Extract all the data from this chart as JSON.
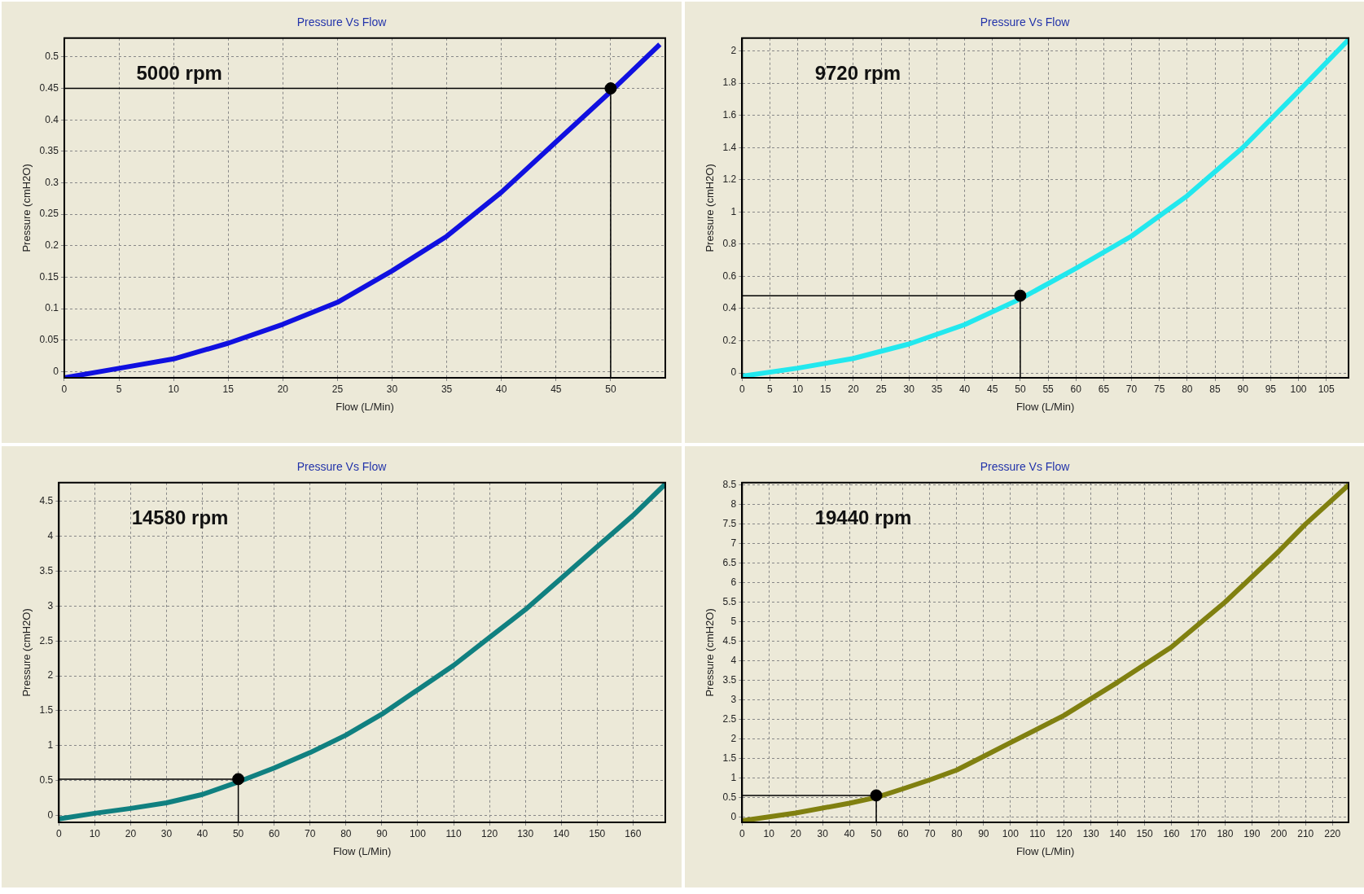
{
  "chart_data": [
    {
      "type": "line",
      "title": "Pressure Vs Flow",
      "xlabel": "Flow (L/Min)",
      "ylabel": "Pressure (cmH2O)",
      "annotations": [
        "5000 rpm"
      ],
      "grid": true,
      "legend": false,
      "xlim": [
        0,
        55
      ],
      "ylim": [
        -0.01,
        0.53
      ],
      "xticks": [
        0,
        5,
        10,
        15,
        20,
        25,
        30,
        35,
        40,
        45,
        50
      ],
      "yticks": [
        0,
        0.05,
        0.1,
        0.15,
        0.2,
        0.25,
        0.3,
        0.35,
        0.4,
        0.45,
        0.5
      ],
      "series": [
        {
          "color": "#1010e0",
          "marker": "none",
          "x": [
            0,
            5,
            10,
            15,
            20,
            25,
            30,
            35,
            40,
            45,
            50,
            54.5
          ],
          "values": [
            -0.01,
            0.005,
            0.02,
            0.045,
            0.075,
            0.11,
            0.16,
            0.215,
            0.285,
            0.365,
            0.445,
            0.52
          ]
        },
        {
          "type": "line",
          "color": "#000000",
          "marker": "none",
          "x": [
            0,
            50,
            50
          ],
          "values": [
            0.45,
            0.45,
            -0.01
          ]
        },
        {
          "type": "scatter",
          "color": "#000000",
          "marker": "circle",
          "x": [
            50
          ],
          "values": [
            0.45
          ]
        }
      ]
    },
    {
      "type": "line",
      "title": "Pressure Vs Flow",
      "xlabel": "Flow (L/Min)",
      "ylabel": "Pressure (cmH2O)",
      "annotations": [
        "9720 rpm"
      ],
      "grid": true,
      "legend": false,
      "xlim": [
        0,
        109
      ],
      "ylim": [
        -0.03,
        2.08
      ],
      "xticks": [
        0,
        5,
        10,
        15,
        20,
        25,
        30,
        35,
        40,
        45,
        50,
        55,
        60,
        65,
        70,
        75,
        80,
        85,
        90,
        95,
        100,
        105
      ],
      "yticks": [
        0,
        0.2,
        0.4,
        0.6,
        0.8,
        1,
        1.2,
        1.4,
        1.6,
        1.8,
        2
      ],
      "series": [
        {
          "color": "#22e8ee",
          "marker": "none",
          "x": [
            0,
            10,
            20,
            30,
            40,
            50,
            60,
            70,
            80,
            90,
            100,
            109
          ],
          "values": [
            -0.02,
            0.03,
            0.09,
            0.18,
            0.3,
            0.46,
            0.65,
            0.85,
            1.1,
            1.4,
            1.75,
            2.07
          ]
        },
        {
          "type": "line",
          "color": "#000000",
          "marker": "none",
          "x": [
            0,
            50,
            50
          ],
          "values": [
            0.48,
            0.48,
            -0.03
          ]
        },
        {
          "type": "scatter",
          "color": "#000000",
          "marker": "circle",
          "x": [
            50
          ],
          "values": [
            0.48
          ]
        }
      ]
    },
    {
      "type": "line",
      "title": "Pressure Vs Flow",
      "xlabel": "Flow (L/Min)",
      "ylabel": "Pressure (cmH2O)",
      "annotations": [
        "14580 rpm"
      ],
      "grid": true,
      "legend": false,
      "xlim": [
        0,
        169
      ],
      "ylim": [
        -0.1,
        4.77
      ],
      "xticks": [
        0,
        10,
        20,
        30,
        40,
        50,
        60,
        70,
        80,
        90,
        100,
        110,
        120,
        130,
        140,
        150,
        160
      ],
      "yticks": [
        0,
        0.5,
        1,
        1.5,
        2,
        2.5,
        3,
        3.5,
        4,
        4.5
      ],
      "series": [
        {
          "color": "#108080",
          "marker": "none",
          "x": [
            0,
            10,
            20,
            30,
            40,
            50,
            60,
            70,
            80,
            90,
            100,
            110,
            120,
            130,
            140,
            150,
            160,
            169
          ],
          "values": [
            -0.05,
            0.03,
            0.1,
            0.18,
            0.3,
            0.48,
            0.68,
            0.9,
            1.15,
            1.45,
            1.8,
            2.15,
            2.55,
            2.95,
            3.4,
            3.85,
            4.3,
            4.75
          ]
        },
        {
          "type": "line",
          "color": "#000000",
          "marker": "none",
          "x": [
            0,
            50,
            50
          ],
          "values": [
            0.52,
            0.52,
            -0.1
          ]
        },
        {
          "type": "scatter",
          "color": "#000000",
          "marker": "circle",
          "x": [
            50
          ],
          "values": [
            0.52
          ]
        }
      ]
    },
    {
      "type": "line",
      "title": "Pressure Vs Flow",
      "xlabel": "Flow (L/Min)",
      "ylabel": "Pressure (cmH2O)",
      "annotations": [
        "19440 rpm"
      ],
      "grid": true,
      "legend": false,
      "xlim": [
        0,
        226
      ],
      "ylim": [
        -0.14,
        8.56
      ],
      "xticks": [
        0,
        10,
        20,
        30,
        40,
        50,
        60,
        70,
        80,
        90,
        100,
        110,
        120,
        130,
        140,
        150,
        160,
        170,
        180,
        190,
        200,
        210,
        220
      ],
      "yticks": [
        0,
        0.5,
        1,
        1.5,
        2,
        2.5,
        3,
        3.5,
        4,
        4.5,
        5,
        5.5,
        6,
        6.5,
        7,
        7.5,
        8,
        8.5
      ],
      "series": [
        {
          "color": "#808010",
          "marker": "none",
          "x": [
            0,
            20,
            40,
            50,
            60,
            70,
            80,
            90,
            100,
            120,
            140,
            160,
            180,
            200,
            210,
            226
          ],
          "values": [
            -0.1,
            0.1,
            0.35,
            0.5,
            0.72,
            0.95,
            1.2,
            1.55,
            1.9,
            2.6,
            3.45,
            4.35,
            5.5,
            6.8,
            7.5,
            8.5
          ]
        },
        {
          "type": "line",
          "color": "#000000",
          "marker": "none",
          "x": [
            0,
            50,
            50
          ],
          "values": [
            0.55,
            0.55,
            -0.14
          ]
        },
        {
          "type": "scatter",
          "color": "#000000",
          "marker": "circle",
          "x": [
            50
          ],
          "values": [
            0.55
          ]
        }
      ]
    }
  ]
}
